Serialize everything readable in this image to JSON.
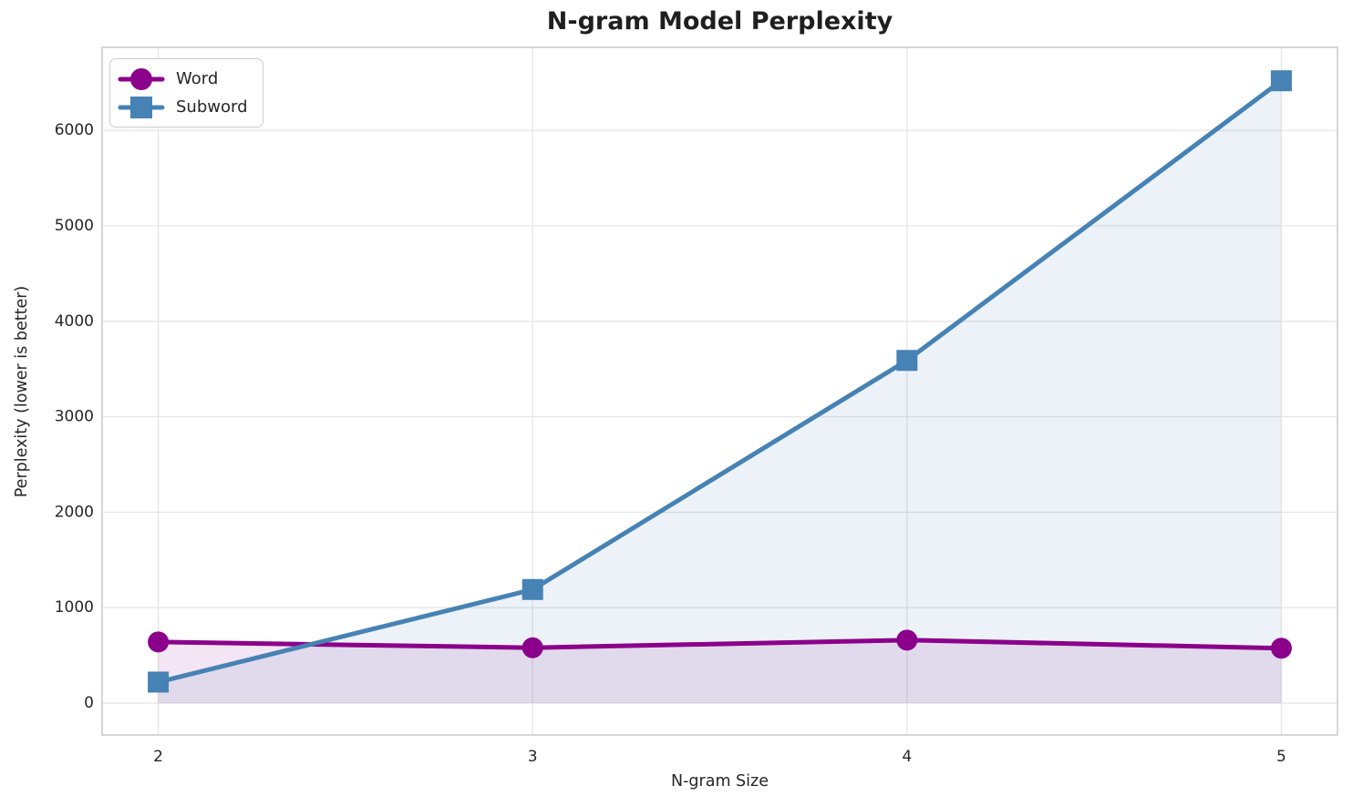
{
  "chart_data": {
    "type": "line",
    "title": "N-gram Model Perplexity",
    "xlabel": "N-gram Size",
    "ylabel": "Perplexity (lower is better)",
    "x": [
      2,
      3,
      4,
      5
    ],
    "series": [
      {
        "name": "Word",
        "color": "#8B008B",
        "marker": "circle",
        "values": [
          640,
          580,
          660,
          575
        ],
        "area_fill": true
      },
      {
        "name": "Subword",
        "color": "#4682B4",
        "marker": "square",
        "values": [
          220,
          1190,
          3590,
          6520
        ],
        "area_fill": true
      }
    ],
    "xticks": [
      2,
      3,
      4,
      5
    ],
    "yticks": [
      0,
      1000,
      2000,
      3000,
      4000,
      5000,
      6000
    ],
    "xlim": [
      1.85,
      5.15
    ],
    "ylim": [
      -334,
      6870
    ],
    "grid": true,
    "legend_position": "upper left",
    "fill_baseline": 0,
    "fill_opacity": 0.1,
    "colors": {
      "text": "#262626",
      "grid": "#e7e7e7",
      "spine": "#cccccc",
      "background": "#ffffff"
    }
  }
}
